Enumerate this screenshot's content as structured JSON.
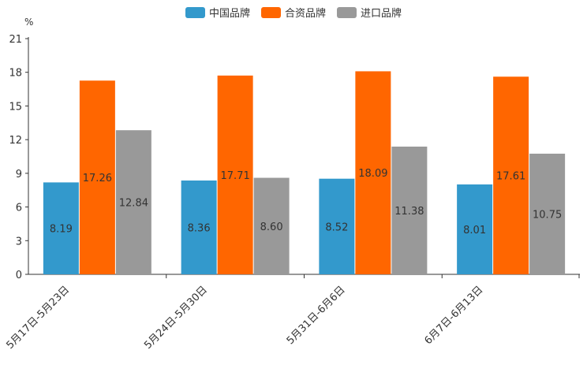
{
  "chart_data": {
    "type": "bar",
    "title": "",
    "ylabel": "%",
    "xlabel": "",
    "ylim": [
      0,
      21
    ],
    "yticks": [
      0,
      3,
      6,
      9,
      12,
      15,
      18,
      21
    ],
    "ytick_labels": [
      "0",
      "3",
      "6",
      "9",
      "12",
      "15",
      "18",
      "21"
    ],
    "categories": [
      "5月17日-5月23日",
      "5月24日-5月30日",
      "5月31日-6月6日",
      "6月7日-6月13日"
    ],
    "series": [
      {
        "name": "中国品牌",
        "color": "#3399cc",
        "values": [
          8.19,
          8.36,
          8.52,
          8.01
        ],
        "value_labels": [
          "8.19",
          "8.36",
          "8.52",
          "8.01"
        ]
      },
      {
        "name": "合资品牌",
        "color": "#ff6600",
        "values": [
          17.26,
          17.71,
          18.09,
          17.61
        ],
        "value_labels": [
          "17.26",
          "17.71",
          "18.09",
          "17.61"
        ]
      },
      {
        "name": "进口品牌",
        "color": "#999999",
        "values": [
          12.84,
          8.6,
          11.38,
          10.75
        ],
        "value_labels": [
          "12.84",
          "8.60",
          "11.38",
          "10.75"
        ]
      }
    ],
    "legend_position": "top-center",
    "grid": false
  }
}
